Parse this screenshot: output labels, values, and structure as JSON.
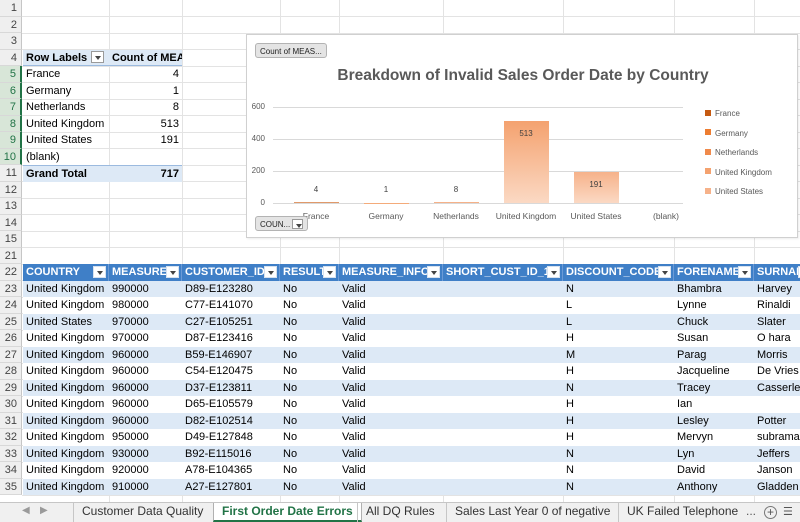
{
  "pivot": {
    "header_label": "Row Labels",
    "header_value": "Count of MEASURE",
    "rows": [
      {
        "label": "France",
        "value": "4"
      },
      {
        "label": "Germany",
        "value": "1"
      },
      {
        "label": "Netherlands",
        "value": "8"
      },
      {
        "label": "United Kingdom",
        "value": "513"
      },
      {
        "label": "United States",
        "value": "191"
      },
      {
        "label": "(blank)",
        "value": ""
      }
    ],
    "total_label": "Grand Total",
    "total_value": "717"
  },
  "chart_data": {
    "type": "bar",
    "title": "Breakdown of Invalid Sales Order Date by Country",
    "value_field_button": "Count of MEAS...",
    "axis_field_button": "COUN...",
    "categories": [
      "France",
      "Germany",
      "Netherlands",
      "United Kingdom",
      "United States",
      "(blank)"
    ],
    "values": [
      4,
      1,
      8,
      513,
      191,
      null
    ],
    "data_labels": [
      "4",
      "1",
      "8",
      "513",
      "191",
      ""
    ],
    "yticks": [
      "0",
      "200",
      "400",
      "600"
    ],
    "ylim": [
      0,
      600
    ],
    "legend": [
      "France",
      "Germany",
      "Netherlands",
      "United Kingdom",
      "United States"
    ],
    "legend_position": "right",
    "colors": [
      "#c55a11",
      "#ed7d31",
      "#f08a4b",
      "#f4a26f",
      "#f6b28a"
    ]
  },
  "table": {
    "columns": [
      "COUNTRY",
      "MEASURE",
      "CUSTOMER_ID",
      "RESULT",
      "MEASURE_INFO",
      "SHORT_CUST_ID_1",
      "DISCOUNT_CODE",
      "FORENAME",
      "SURNAME"
    ],
    "rows": [
      [
        "United Kingdom",
        "990000",
        "D89-E123280",
        "No",
        "Valid",
        "",
        "N",
        "Bhambra",
        "Harvey"
      ],
      [
        "United Kingdom",
        "980000",
        "C77-E141070",
        "No",
        "Valid",
        "",
        "L",
        "Lynne",
        "Rinaldi"
      ],
      [
        "United States",
        "970000",
        "C27-E105251",
        "No",
        "Valid",
        "",
        "L",
        "Chuck",
        "Slater"
      ],
      [
        "United Kingdom",
        "970000",
        "D87-E123416",
        "No",
        "Valid",
        "",
        "H",
        "Susan",
        "O hara"
      ],
      [
        "United Kingdom",
        "960000",
        "B59-E146907",
        "No",
        "Valid",
        "",
        "M",
        "Parag",
        "Morris"
      ],
      [
        "United Kingdom",
        "960000",
        "C54-E120475",
        "No",
        "Valid",
        "",
        "H",
        "Jacqueline",
        "De Vries"
      ],
      [
        "United Kingdom",
        "960000",
        "D37-E123811",
        "No",
        "Valid",
        "",
        "N",
        "Tracey",
        "Casserley"
      ],
      [
        "United Kingdom",
        "960000",
        "D65-E105579",
        "No",
        "Valid",
        "",
        "H",
        "Ian",
        ""
      ],
      [
        "United Kingdom",
        "960000",
        "D82-E102514",
        "No",
        "Valid",
        "",
        "H",
        "Lesley",
        "Potter"
      ],
      [
        "United Kingdom",
        "950000",
        "D49-E127848",
        "No",
        "Valid",
        "",
        "H",
        "Mervyn",
        "subramaniam"
      ],
      [
        "United Kingdom",
        "930000",
        "B92-E115016",
        "No",
        "Valid",
        "",
        "N",
        "Lyn",
        "Jeffers"
      ],
      [
        "United Kingdom",
        "920000",
        "A78-E104365",
        "No",
        "Valid",
        "",
        "N",
        "David",
        "Janson"
      ],
      [
        "United Kingdom",
        "910000",
        "A27-E127801",
        "No",
        "Valid",
        "",
        "N",
        "Anthony",
        "Gladden"
      ]
    ]
  },
  "row_numbers": [
    "1",
    "2",
    "3",
    "4",
    "5",
    "6",
    "7",
    "8",
    "9",
    "10",
    "11",
    "12",
    "13",
    "14",
    "15",
    "21",
    "22",
    "23",
    "24",
    "25",
    "26",
    "27",
    "28",
    "29",
    "30",
    "31",
    "32",
    "33",
    "34",
    "35"
  ],
  "sheet_tabs": [
    "Customer Data Quality",
    "First Order Date Errors",
    "All DQ  Rules",
    "Sales Last Year 0 of negative",
    "UK Failed Telephone"
  ],
  "active_tab": "First Order Date Errors",
  "tabs_more": "...",
  "tabs_add": "+",
  "colors": {
    "table_header": "#3f7fc7",
    "band": "#dde9f6",
    "excel_green": "#217346"
  }
}
